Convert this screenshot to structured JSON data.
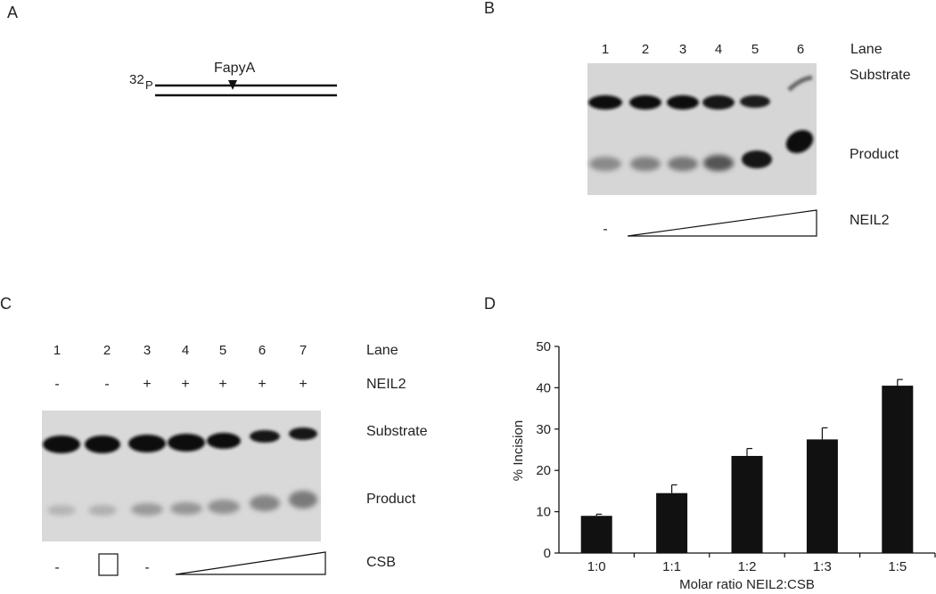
{
  "panels": {
    "a": {
      "letter": "A",
      "label_32": "32",
      "label_p": "P",
      "lesion": "FapyA"
    },
    "b": {
      "letter": "B",
      "lane_header": "Lane",
      "lanes": [
        "1",
        "2",
        "3",
        "4",
        "5",
        "6"
      ],
      "substrate_label": "Substrate",
      "product_label": "Product",
      "enzyme_label": "NEIL2",
      "minus": "-"
    },
    "c": {
      "letter": "C",
      "lane_header": "Lane",
      "lanes": [
        "1",
        "2",
        "3",
        "4",
        "5",
        "6",
        "7"
      ],
      "neil2_label": "NEIL2",
      "neil2_signs": [
        "-",
        "-",
        "+",
        "+",
        "+",
        "+",
        "+"
      ],
      "substrate_label": "Substrate",
      "product_label": "Product",
      "csb_label": "CSB",
      "csb_minus_1": "-",
      "csb_minus_3": "-"
    },
    "d": {
      "letter": "D"
    }
  },
  "chart_data": {
    "type": "bar",
    "categories": [
      "1:0",
      "1:1",
      "1:2",
      "1:3",
      "1:5"
    ],
    "values": [
      9,
      14.5,
      23.5,
      27.5,
      40.5
    ],
    "errors": [
      0.4,
      2.0,
      1.8,
      2.8,
      1.5
    ],
    "title": "",
    "xlabel": "Molar ratio NEIL2:CSB",
    "ylabel": "% Incision",
    "ylim": [
      0,
      50
    ],
    "yticks": [
      "0",
      "10",
      "20",
      "30",
      "40",
      "50"
    ],
    "bar_color": "#111111",
    "grid": false,
    "legend": "none"
  }
}
